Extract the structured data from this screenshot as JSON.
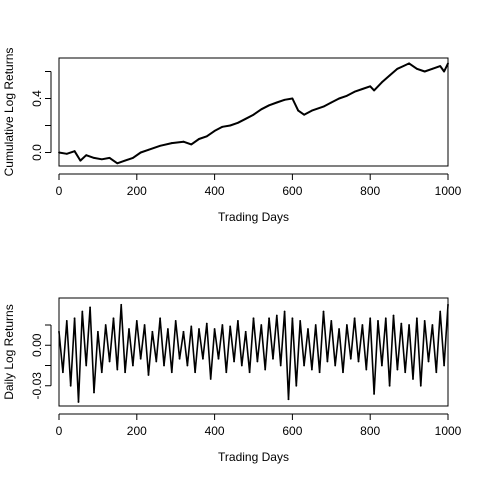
{
  "chart_data": [
    {
      "type": "line",
      "xlabel": "Trading Days",
      "ylabel": "Cumulative Log Returns",
      "xlim": [
        0,
        1000
      ],
      "ylim": [
        -0.1,
        0.7
      ],
      "x_ticks": [
        0,
        200,
        400,
        600,
        800,
        1000
      ],
      "x_tick_labels": [
        "0",
        "200",
        "400",
        "600",
        "800",
        "1000"
      ],
      "y_ticks": [
        0.0,
        0.2,
        0.4,
        0.6
      ],
      "y_tick_labels": [
        "0.0",
        "",
        "0.4",
        ""
      ],
      "grid": false,
      "series": [
        {
          "x": [
            0,
            20,
            40,
            55,
            70,
            90,
            110,
            130,
            150,
            170,
            190,
            210,
            230,
            260,
            290,
            320,
            340,
            360,
            380,
            400,
            420,
            440,
            460,
            480,
            500,
            520,
            540,
            560,
            580,
            600,
            615,
            630,
            650,
            680,
            700,
            720,
            740,
            760,
            780,
            800,
            810,
            830,
            850,
            870,
            885,
            900,
            920,
            940,
            960,
            980,
            990,
            1000
          ],
          "values": [
            0.0,
            -0.01,
            0.01,
            -0.06,
            -0.02,
            -0.04,
            -0.05,
            -0.04,
            -0.08,
            -0.06,
            -0.04,
            0.0,
            0.02,
            0.05,
            0.07,
            0.08,
            0.06,
            0.1,
            0.12,
            0.16,
            0.19,
            0.2,
            0.22,
            0.25,
            0.28,
            0.32,
            0.35,
            0.37,
            0.39,
            0.4,
            0.31,
            0.28,
            0.31,
            0.34,
            0.37,
            0.4,
            0.42,
            0.45,
            0.47,
            0.49,
            0.46,
            0.52,
            0.57,
            0.62,
            0.64,
            0.66,
            0.62,
            0.6,
            0.62,
            0.64,
            0.6,
            0.66
          ]
        }
      ]
    },
    {
      "type": "line",
      "xlabel": "Trading Days",
      "ylabel": "Daily Log Returns",
      "xlim": [
        0,
        1000
      ],
      "ylim": [
        -0.045,
        0.035
      ],
      "x_ticks": [
        0,
        200,
        400,
        600,
        800,
        1000
      ],
      "x_tick_labels": [
        "0",
        "200",
        "400",
        "600",
        "800",
        "1000"
      ],
      "y_ticks": [
        -0.03,
        -0.015,
        0.0,
        0.015
      ],
      "y_tick_labels": [
        "-0.03",
        "",
        "0.00",
        ""
      ],
      "grid": false,
      "series": [
        {
          "x": [
            0,
            10,
            20,
            30,
            40,
            50,
            60,
            70,
            80,
            90,
            100,
            110,
            120,
            130,
            140,
            150,
            160,
            170,
            180,
            190,
            200,
            210,
            220,
            230,
            240,
            250,
            260,
            270,
            280,
            290,
            300,
            310,
            320,
            330,
            340,
            350,
            360,
            370,
            380,
            390,
            400,
            410,
            420,
            430,
            440,
            450,
            460,
            470,
            480,
            490,
            500,
            510,
            520,
            530,
            540,
            550,
            560,
            570,
            580,
            590,
            600,
            610,
            620,
            630,
            640,
            650,
            660,
            670,
            680,
            690,
            700,
            710,
            720,
            730,
            740,
            750,
            760,
            770,
            780,
            790,
            800,
            810,
            820,
            830,
            840,
            850,
            860,
            870,
            880,
            890,
            900,
            910,
            920,
            930,
            940,
            950,
            960,
            970,
            980,
            990,
            1000
          ],
          "values": [
            0.01,
            -0.02,
            0.018,
            -0.03,
            0.02,
            -0.042,
            0.025,
            -0.015,
            0.028,
            -0.035,
            0.01,
            -0.02,
            0.015,
            -0.012,
            0.02,
            -0.018,
            0.03,
            -0.02,
            0.012,
            -0.015,
            0.018,
            -0.01,
            0.015,
            -0.022,
            0.01,
            -0.012,
            0.02,
            -0.015,
            0.012,
            -0.02,
            0.018,
            -0.01,
            0.01,
            -0.015,
            0.014,
            -0.02,
            0.012,
            -0.01,
            0.016,
            -0.025,
            0.012,
            -0.01,
            0.015,
            -0.02,
            0.014,
            -0.012,
            0.018,
            -0.015,
            0.01,
            -0.02,
            0.02,
            -0.012,
            0.015,
            -0.018,
            0.02,
            -0.01,
            0.022,
            -0.015,
            0.025,
            -0.04,
            0.02,
            -0.03,
            0.018,
            -0.015,
            0.012,
            -0.018,
            0.015,
            -0.02,
            0.025,
            -0.012,
            0.018,
            -0.015,
            0.012,
            -0.02,
            0.015,
            -0.01,
            0.02,
            -0.012,
            0.015,
            -0.018,
            0.02,
            -0.036,
            0.018,
            -0.015,
            0.02,
            -0.03,
            0.022,
            -0.018,
            0.016,
            -0.02,
            0.015,
            -0.025,
            0.02,
            -0.03,
            0.018,
            -0.012,
            0.015,
            -0.02,
            0.025,
            -0.015,
            0.03
          ]
        }
      ]
    }
  ]
}
